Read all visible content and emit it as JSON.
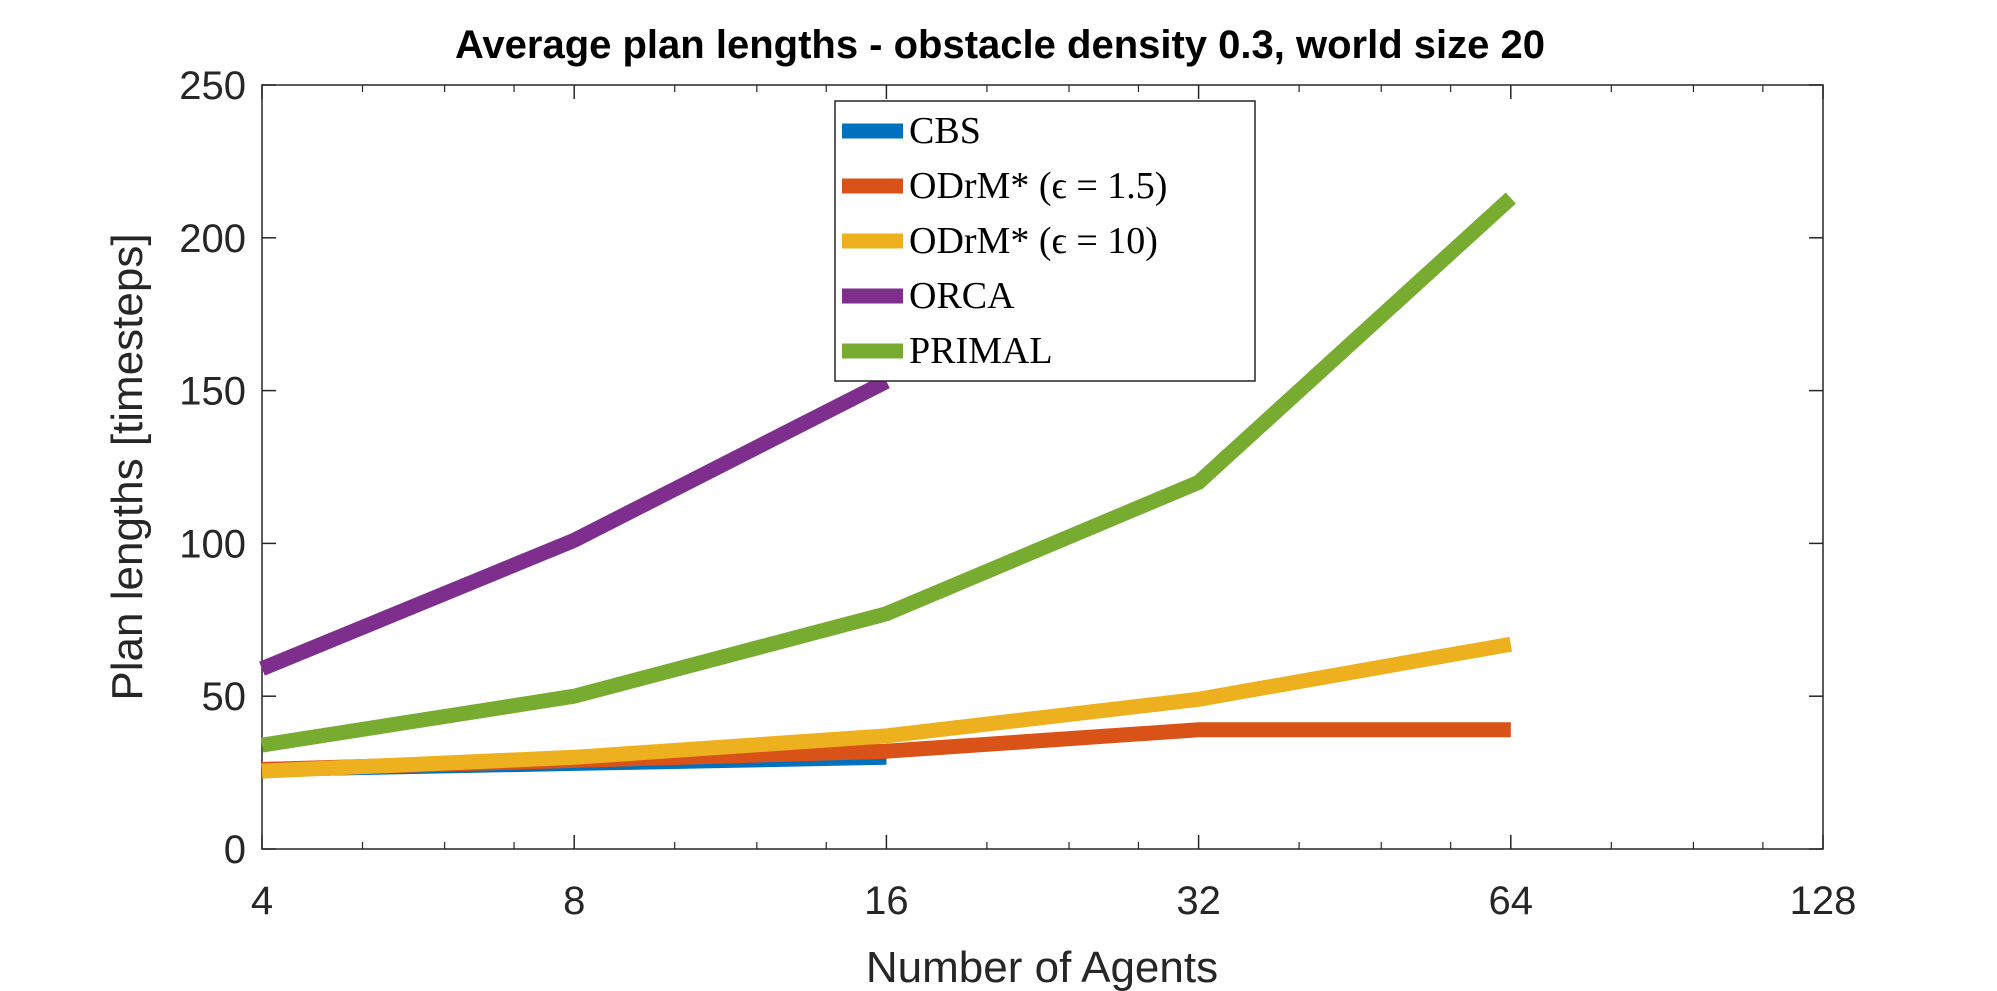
{
  "chart_data": {
    "type": "line",
    "title": "Average plan lengths - obstacle density 0.3, world size 20",
    "xlabel": "Number of Agents",
    "ylabel": "Plan lengths [timesteps]",
    "x_scale": "log2",
    "xlim": [
      4,
      128
    ],
    "ylim": [
      0,
      250
    ],
    "x_ticks": [
      "4",
      "8",
      "16",
      "32",
      "64",
      "128"
    ],
    "y_ticks": [
      "0",
      "50",
      "100",
      "150",
      "200",
      "250"
    ],
    "grid": false,
    "legend_position": "top-center",
    "series": [
      {
        "name": "CBS",
        "color": "#0072BD",
        "x": [
          4,
          8,
          16
        ],
        "values": [
          26,
          28,
          30
        ]
      },
      {
        "name": "ODrM* (ϵ = 1.5)",
        "color": "#D95319",
        "x": [
          4,
          8,
          16,
          32,
          64
        ],
        "values": [
          26,
          29,
          32,
          39,
          39
        ]
      },
      {
        "name": "ODrM* (ϵ = 10)",
        "color": "#EDB120",
        "x": [
          4,
          8,
          16,
          32,
          64
        ],
        "values": [
          25.5,
          30,
          37,
          49,
          67
        ]
      },
      {
        "name": "ORCA",
        "color": "#7E2F8E",
        "x": [
          4,
          8,
          16
        ],
        "values": [
          59,
          101,
          153
        ]
      },
      {
        "name": "PRIMAL",
        "color": "#77AC30",
        "x": [
          4,
          8,
          16,
          32,
          64
        ],
        "values": [
          34,
          50,
          77,
          120,
          213
        ]
      }
    ]
  }
}
